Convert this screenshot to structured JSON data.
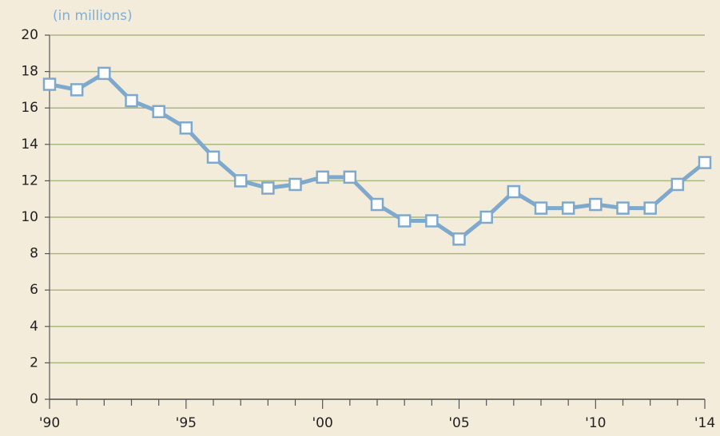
{
  "chart_data": {
    "type": "line",
    "y_label": "(in millions)",
    "categories": [
      "'90",
      null,
      null,
      null,
      null,
      "'95",
      null,
      null,
      null,
      null,
      "'00",
      null,
      null,
      null,
      null,
      "'05",
      null,
      null,
      null,
      null,
      "'10",
      null,
      null,
      null,
      "'14"
    ],
    "series": [
      {
        "color": "#7ea9cc",
        "values": [
          17.3,
          17.0,
          17.9,
          16.4,
          15.8,
          14.9,
          13.3,
          12.0,
          11.6,
          11.8,
          12.2,
          12.2,
          10.7,
          9.8,
          9.8,
          8.8,
          10.0,
          11.4,
          10.5,
          10.5,
          10.7,
          10.5,
          10.5,
          11.8,
          13.0
        ]
      }
    ],
    "ylim": [
      0,
      20
    ],
    "yticks": [
      0,
      2,
      4,
      6,
      8,
      10,
      12,
      14,
      16,
      18,
      20
    ],
    "grid": true,
    "grid_color": "#a9b97e"
  }
}
